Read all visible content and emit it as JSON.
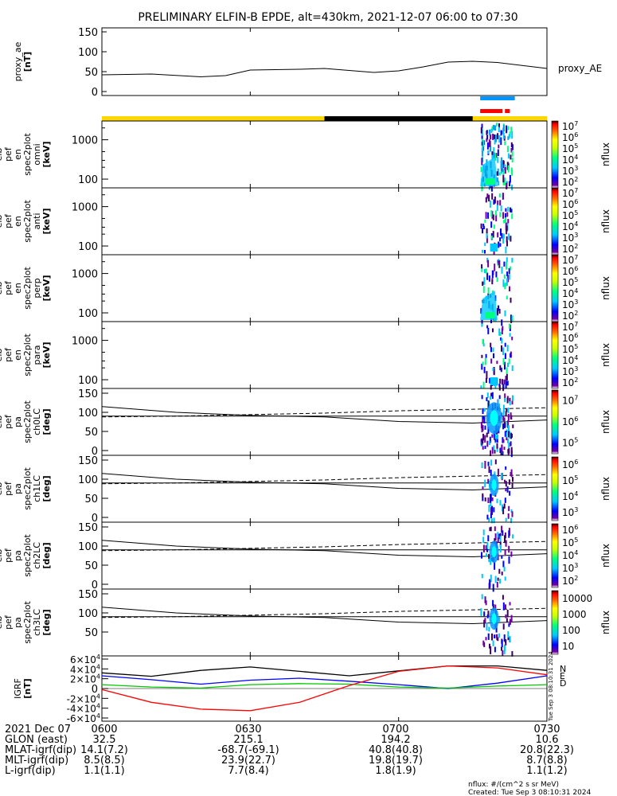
{
  "title": "PRELIMINARY ELFIN-B EPDE, alt=430km, 2021-12-07 06:00 to 07:30",
  "colors": {
    "cyan": "#00ffff",
    "blue": "#0000ff",
    "green": "#00c800",
    "yellow": "#ffff00",
    "orange": "#ff9600",
    "red": "#ff0000",
    "darkred": "#640000",
    "black": "#000000",
    "ae_bar_yellow": "#ffd700",
    "ae_bar_black": "#000000"
  },
  "chart_data": [
    {
      "type": "line",
      "panel": "proxy_ae",
      "ylabel": [
        "proxy_ae",
        "[nT]"
      ],
      "legend": "proxy_AE",
      "ylim": [
        0,
        150
      ],
      "yticks": [
        0,
        50,
        100,
        150
      ],
      "x_minutes_since_0600": [
        0,
        10,
        20,
        25,
        30,
        40,
        45,
        55,
        60,
        65,
        70,
        75,
        80,
        90
      ],
      "values": [
        42,
        44,
        37,
        40,
        54,
        56,
        58,
        48,
        52,
        62,
        74,
        76,
        73,
        58
      ]
    },
    {
      "type": "bar",
      "panel": "orbit_indicator",
      "description_segments": [
        {
          "from": 0,
          "to": 45,
          "color": "yellow"
        },
        {
          "from": 45,
          "to": 75,
          "color": "black"
        },
        {
          "from": 75,
          "to": 90,
          "color": "yellow"
        }
      ],
      "blue_marker": [
        76.5,
        83.5
      ],
      "red_marker": [
        76.5,
        82.5
      ]
    },
    {
      "type": "heatmap",
      "panel": "en_omni",
      "ylabel": [
        "elb",
        "pef",
        "en",
        "spec2plot",
        "omni",
        "[keV]"
      ],
      "yticks": [
        100,
        1000
      ],
      "ylog": true,
      "zlabel": "nflux",
      "zticks": [
        "10^2",
        "10^3",
        "10^4",
        "10^5",
        "10^6",
        "10^7"
      ],
      "active_interval_minutes": [
        76.5,
        83
      ]
    },
    {
      "type": "heatmap",
      "panel": "en_anti",
      "ylabel": [
        "elb",
        "pef",
        "en",
        "spec2plot",
        "anti",
        "[keV]"
      ],
      "yticks": [
        100,
        1000
      ],
      "ylog": true,
      "zlabel": "nflux",
      "zticks": [
        "10^2",
        "10^3",
        "10^4",
        "10^5",
        "10^6",
        "10^7"
      ],
      "active_interval_minutes": [
        76.5,
        83
      ]
    },
    {
      "type": "heatmap",
      "panel": "en_perp",
      "ylabel": [
        "elb",
        "pef",
        "en",
        "spec2plot",
        "perp",
        "[keV]"
      ],
      "yticks": [
        100,
        1000
      ],
      "ylog": true,
      "zlabel": "nflux",
      "zticks": [
        "10^2",
        "10^3",
        "10^4",
        "10^5",
        "10^6",
        "10^7"
      ],
      "active_interval_minutes": [
        76.5,
        83
      ]
    },
    {
      "type": "heatmap",
      "panel": "en_para",
      "ylabel": [
        "elb",
        "pef",
        "en",
        "spec2plot",
        "para",
        "[keV]"
      ],
      "yticks": [
        100,
        1000
      ],
      "ylog": true,
      "zlabel": "nflux",
      "zticks": [
        "10^2",
        "10^3",
        "10^4",
        "10^5",
        "10^6",
        "10^7"
      ],
      "active_interval_minutes": [
        76.5,
        83
      ]
    },
    {
      "type": "heatmap",
      "panel": "pa_ch0LC",
      "ylabel": [
        "elb",
        "pef",
        "pa",
        "spec2plot",
        "ch0LC",
        "[deg]"
      ],
      "ylim": [
        0,
        150
      ],
      "yticks": [
        0,
        50,
        100,
        150
      ],
      "zlabel": "nflux",
      "zticks": [
        "10^5",
        "10^6",
        "10^7"
      ],
      "solid_line": [
        115,
        100,
        92,
        88,
        76,
        72,
        80
      ],
      "dashed_line": [
        88,
        90,
        94,
        98,
        104,
        108,
        112
      ],
      "flat_line": 90,
      "active_interval_minutes": [
        76.5,
        83
      ]
    },
    {
      "type": "heatmap",
      "panel": "pa_ch1LC",
      "ylabel": [
        "elb",
        "pef",
        "pa",
        "spec2plot",
        "ch1LC",
        "[deg]"
      ],
      "ylim": [
        0,
        150
      ],
      "yticks": [
        0,
        50,
        100,
        150
      ],
      "zlabel": "nflux",
      "zticks": [
        "10^3",
        "10^4",
        "10^5",
        "10^6"
      ],
      "solid_line": [
        115,
        100,
        92,
        88,
        76,
        72,
        80
      ],
      "dashed_line": [
        88,
        90,
        94,
        98,
        104,
        108,
        112
      ],
      "flat_line": 90,
      "active_interval_minutes": [
        76.5,
        83
      ]
    },
    {
      "type": "heatmap",
      "panel": "pa_ch2LC",
      "ylabel": [
        "elb",
        "pef",
        "pa",
        "spec2plot",
        "ch2LC",
        "[deg]"
      ],
      "ylim": [
        0,
        150
      ],
      "yticks": [
        0,
        50,
        100,
        150
      ],
      "zlabel": "nflux",
      "zticks": [
        "10^2",
        "10^3",
        "10^4",
        "10^5",
        "10^6"
      ],
      "solid_line": [
        115,
        100,
        92,
        88,
        76,
        72,
        80
      ],
      "dashed_line": [
        88,
        90,
        94,
        98,
        104,
        108,
        112
      ],
      "flat_line": 90,
      "active_interval_minutes": [
        76.5,
        83
      ]
    },
    {
      "type": "heatmap",
      "panel": "pa_ch3LC",
      "ylabel": [
        "elb",
        "pef",
        "pa",
        "spec2plot",
        "ch3LC",
        "[deg]"
      ],
      "ylim": [
        0,
        150
      ],
      "yticks": [
        50,
        100,
        150
      ],
      "zlabel": "nflux",
      "zticks": [
        "10",
        "100",
        "1000",
        "10000"
      ],
      "solid_line": [
        115,
        100,
        92,
        88,
        76,
        72,
        80
      ],
      "dashed_line": [
        88,
        90,
        94,
        98,
        104,
        108,
        112
      ],
      "flat_line": 90,
      "active_interval_minutes": [
        76.5,
        83
      ]
    },
    {
      "type": "line",
      "panel": "IGRF",
      "ylabel": [
        "IGRF",
        "[nT]"
      ],
      "ylim": [
        -60000,
        60000
      ],
      "yticks": [
        "-6×10^4",
        "-4×10^4",
        "-2×10^4",
        "0",
        "2×10^4",
        "4×10^4",
        "6×10^4"
      ],
      "legend": [
        "N",
        "E",
        "D"
      ],
      "x_minutes_since_0600": [
        0,
        10,
        20,
        30,
        40,
        50,
        60,
        70,
        80,
        90
      ],
      "series": [
        {
          "color": "black",
          "values": [
            32000,
            25000,
            37000,
            44000,
            35000,
            26000,
            36000,
            46000,
            46000,
            37000
          ]
        },
        {
          "color": "blue",
          "values": [
            26000,
            18000,
            9000,
            17000,
            21000,
            15000,
            8000,
            0,
            11000,
            26000
          ]
        },
        {
          "color": "green",
          "values": [
            8000,
            3000,
            1000,
            8000,
            10000,
            9000,
            3000,
            1000,
            5000,
            8000
          ]
        },
        {
          "color": "red",
          "values": [
            -2000,
            -28000,
            -42000,
            -45000,
            -28000,
            6000,
            35000,
            46000,
            42000,
            28000
          ]
        }
      ],
      "side_note": "Tue Sep  3 08:10:31 2024"
    }
  ],
  "xaxis": {
    "ticks": [
      "0600",
      "0630",
      "0700",
      "0730"
    ],
    "minutes": [
      0,
      30,
      60,
      90
    ]
  },
  "footer_table": {
    "rows": [
      {
        "label": "2021 Dec 07",
        "values": [
          "0600",
          "0630",
          "0700",
          "0730"
        ]
      },
      {
        "label": "GLON (east)",
        "values": [
          "32.5",
          "215.1",
          "194.2",
          "10.6"
        ]
      },
      {
        "label": "MLAT-igrf(dip)",
        "values": [
          "14.1(7.2)",
          "-68.7(-69.1)",
          "40.8(40.8)",
          "20.8(22.3)"
        ]
      },
      {
        "label": "MLT-igrf(dip)",
        "values": [
          "8.5(8.5)",
          "23.9(22.7)",
          "19.8(19.7)",
          "8.7(8.8)"
        ]
      },
      {
        "label": "L-igrf(dip)",
        "values": [
          "1.1(1.1)",
          "7.7(8.4)",
          "1.8(1.9)",
          "1.1(1.2)"
        ]
      }
    ]
  },
  "footer_note": {
    "units": "nflux: #/(cm^2 s sr MeV)",
    "created": "Created: Tue Sep  3 08:10:31 2024"
  }
}
